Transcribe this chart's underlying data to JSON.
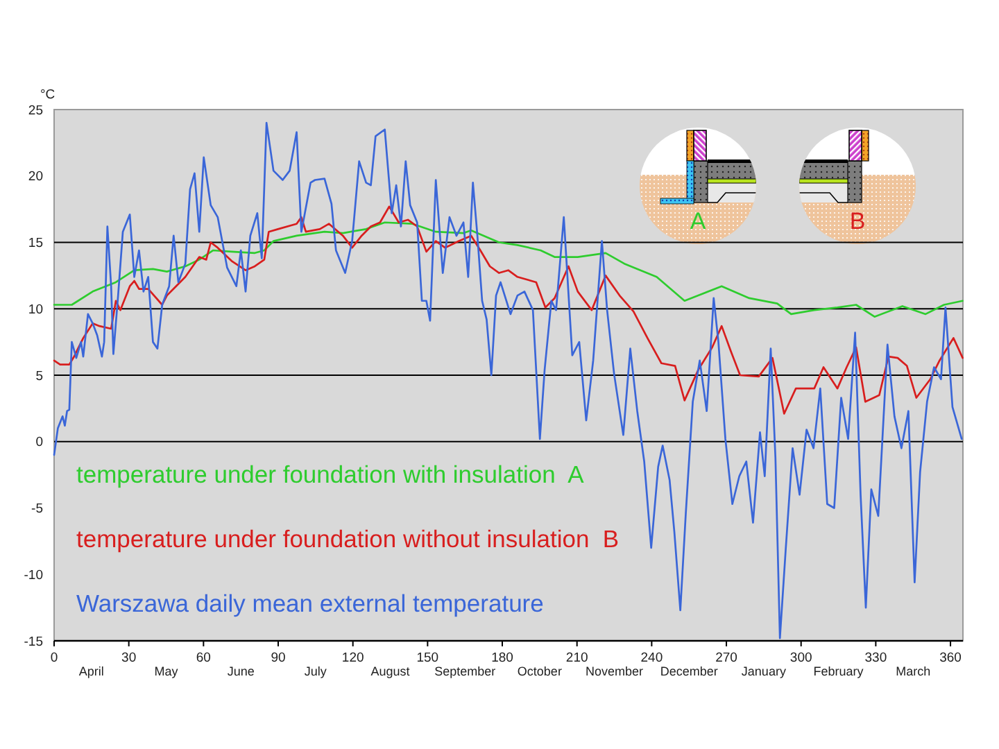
{
  "chart_data": {
    "type": "line",
    "ylabel": "°C",
    "xlim": [
      0,
      365
    ],
    "xticks": [
      0,
      30,
      60,
      90,
      120,
      150,
      180,
      210,
      240,
      270,
      300,
      330,
      360
    ],
    "ylim": [
      -15,
      25
    ],
    "yticks": [
      -15,
      -10,
      -5,
      0,
      5,
      10,
      15,
      20,
      25
    ],
    "legend": "bottom left",
    "ref_lines": [
      {
        "axis": "y",
        "value": 0,
        "color": "#000000"
      },
      {
        "axis": "y",
        "value": 5,
        "color": "#000000"
      },
      {
        "axis": "y",
        "value": 10,
        "color": "#000000"
      },
      {
        "axis": "y",
        "value": 15,
        "color": "#000000"
      }
    ],
    "annotations": [
      "A",
      "B",
      "April",
      "May",
      "June",
      "July",
      "August",
      "September",
      "October",
      "November",
      "December",
      "January",
      "February",
      "March"
    ],
    "series": [
      {
        "name": "temperature under foundation with insulation  A",
        "color": "#2ecc2e",
        "x": [
          0,
          7.1,
          15.5,
          24.8,
          32.2,
          39.7,
          45.3,
          52.7,
          58.3,
          63.9,
          71.3,
          80.6,
          84.4,
          88.1,
          97.4,
          108.6,
          116,
          125.3,
          132.8,
          143.9,
          153.3,
          164.4,
          167.5,
          178.7,
          186.1,
          195.4,
          201,
          204.7,
          210.3,
          221.5,
          229,
          242,
          253.2,
          258.7,
          268.1,
          279.2,
          290.4,
          296,
          305.3,
          314.6,
          322.1,
          329.5,
          340.7,
          350,
          357.4,
          364.9
        ],
        "values": [
          10.3,
          10.3,
          11.3,
          12.0,
          12.9,
          13.0,
          12.8,
          13.2,
          13.7,
          14.4,
          14.3,
          14.2,
          14.4,
          15.1,
          15.5,
          15.8,
          15.7,
          16.0,
          16.5,
          16.4,
          15.8,
          15.7,
          15.9,
          15.0,
          14.8,
          14.4,
          13.9,
          13.9,
          13.9,
          14.2,
          13.4,
          12.4,
          10.6,
          11.0,
          11.7,
          10.8,
          10.4,
          9.6,
          9.9,
          10.1,
          10.3,
          9.4,
          10.2,
          9.6,
          10.3,
          10.6
        ]
      },
      {
        "name": "temperature under foundation without insulation  B",
        "color": "#d81e1e",
        "x": [
          0,
          2.4,
          6.1,
          8.0,
          11.7,
          15.5,
          18.2,
          22.9,
          24.8,
          26.6,
          30.4,
          32.2,
          34.1,
          37.8,
          43.4,
          45.3,
          52.7,
          58.3,
          61.1,
          62.9,
          65.7,
          71.3,
          76.9,
          80.6,
          84.4,
          86.2,
          89.9,
          97.4,
          99.3,
          101.1,
          106.7,
          110.4,
          116.0,
          119.7,
          123.5,
          127.2,
          130.9,
          134.6,
          138.4,
          142.1,
          145.8,
          149.5,
          153.3,
          157.0,
          162.6,
          167.5,
          171.2,
          175.0,
          178.7,
          182.4,
          186.1,
          193.6,
          197.3,
          201.0,
          206.6,
          210.3,
          215.9,
          221.5,
          227.1,
          232.7,
          238.3,
          243.9,
          249.4,
          253.2,
          258.7,
          264.3,
          268.1,
          271.8,
          275.5,
          283.0,
          288.5,
          293.2,
          297.9,
          305.3,
          309.0,
          314.6,
          318.3,
          322.1,
          325.8,
          331.4,
          335.1,
          338.8,
          342.5,
          346.3,
          351.9,
          355.6,
          361.2,
          364.9
        ],
        "values": [
          6.1,
          5.8,
          5.8,
          6.4,
          7.8,
          8.9,
          8.7,
          8.5,
          10.6,
          9.9,
          11.7,
          12.1,
          11.5,
          11.5,
          10.3,
          11.0,
          12.4,
          13.9,
          13.7,
          15.0,
          14.6,
          13.6,
          12.9,
          13.2,
          13.7,
          15.8,
          16.0,
          16.4,
          16.9,
          15.8,
          16.0,
          16.4,
          15.5,
          14.6,
          15.5,
          16.2,
          16.5,
          17.7,
          16.5,
          16.7,
          16.2,
          14.3,
          15.1,
          14.6,
          15.1,
          15.5,
          14.4,
          13.2,
          12.7,
          12.9,
          12.4,
          12.0,
          10.1,
          10.8,
          13.2,
          11.3,
          9.9,
          12.5,
          11.0,
          9.8,
          7.8,
          5.9,
          5.7,
          3.1,
          5.4,
          7.1,
          8.7,
          6.8,
          5.0,
          4.9,
          6.3,
          2.1,
          4.0,
          4.0,
          5.6,
          4.0,
          5.6,
          7.1,
          3.0,
          3.5,
          6.4,
          6.3,
          5.7,
          3.3,
          4.7,
          6.1,
          7.8,
          6.3
        ]
      },
      {
        "name": "Warszawa daily mean external temperature",
        "color": "#3a66d8",
        "x": [
          0,
          1.5,
          3.4,
          4.3,
          5.2,
          6.1,
          7.1,
          8.9,
          10.8,
          11.7,
          13.6,
          15.5,
          17.3,
          19.2,
          20.1,
          21.4,
          22.9,
          23.8,
          25.7,
          27.6,
          30.4,
          32.2,
          34.1,
          35.9,
          37.8,
          39.7,
          41.5,
          43.4,
          46.2,
          48.0,
          49.9,
          52.7,
          54.6,
          56.4,
          58.3,
          60.1,
          62.9,
          65.7,
          69.5,
          73.2,
          75.0,
          76.9,
          78.8,
          81.6,
          83.4,
          85.3,
          88.1,
          91.8,
          94.6,
          97.4,
          99.3,
          103.0,
          104.8,
          108.6,
          111.4,
          113.2,
          116.9,
          119.7,
          122.5,
          125.3,
          127.2,
          129.1,
          132.8,
          135.6,
          137.4,
          139.3,
          141.2,
          143.0,
          145.8,
          147.7,
          149.5,
          151.0,
          153.3,
          156.1,
          158.8,
          161.6,
          164.4,
          166.3,
          168.2,
          170.0,
          171.9,
          173.7,
          175.6,
          177.5,
          179.3,
          183.3,
          186.1,
          188.9,
          192.3,
          195.1,
          197.0,
          199.7,
          201.6,
          204.7,
          208.1,
          210.9,
          213.7,
          216.5,
          220.0,
          222.1,
          224.9,
          228.6,
          231.4,
          234.2,
          237.0,
          239.8,
          242.6,
          244.4,
          247.2,
          249.1,
          251.5,
          253.7,
          256.5,
          259.3,
          262.1,
          264.9,
          266.8,
          269.6,
          272.4,
          275.2,
          278.0,
          280.7,
          283.5,
          285.4,
          287.8,
          289.7,
          291.5,
          293.8,
          296.6,
          299.4,
          302.2,
          305.0,
          307.7,
          310.5,
          313.3,
          316.1,
          318.9,
          321.7,
          323.9,
          326.0,
          328.2,
          331.0,
          334.7,
          337.5,
          340.3,
          343.1,
          345.6,
          347.8,
          350.6,
          353.4,
          356.2,
          358.0,
          360.8,
          364.5
        ],
        "values": [
          -1.0,
          1.0,
          1.9,
          1.2,
          2.3,
          2.4,
          7.5,
          6.3,
          7.5,
          6.4,
          9.6,
          8.9,
          8.0,
          6.4,
          7.5,
          16.2,
          11.7,
          6.6,
          11.0,
          15.8,
          17.1,
          12.4,
          14.4,
          11.3,
          12.4,
          7.5,
          7.0,
          10.3,
          11.7,
          15.5,
          12.0,
          13.4,
          19.0,
          20.2,
          15.8,
          21.4,
          17.8,
          16.9,
          13.1,
          11.7,
          14.4,
          11.3,
          15.5,
          17.2,
          13.8,
          24.0,
          20.4,
          19.7,
          20.4,
          23.3,
          15.8,
          19.5,
          19.7,
          19.8,
          17.9,
          14.4,
          12.7,
          15.1,
          21.1,
          19.5,
          19.3,
          23.0,
          23.5,
          17.2,
          19.3,
          16.2,
          21.1,
          17.8,
          16.5,
          10.6,
          10.6,
          9.1,
          19.7,
          12.7,
          16.9,
          15.5,
          16.5,
          12.4,
          19.5,
          15.5,
          10.6,
          9.2,
          5.0,
          11.0,
          12.0,
          9.6,
          11.0,
          11.3,
          9.9,
          0.2,
          5.4,
          10.6,
          9.9,
          16.9,
          6.5,
          7.5,
          1.6,
          6.1,
          15.1,
          9.9,
          5.1,
          0.5,
          7.0,
          2.3,
          -1.5,
          -8.0,
          -1.9,
          -0.3,
          -2.9,
          -6.8,
          -12.7,
          -5.4,
          3.0,
          6.1,
          2.3,
          10.8,
          7.5,
          0.2,
          -4.7,
          -2.6,
          -1.5,
          -6.1,
          0.7,
          -2.6,
          7.0,
          -1.2,
          -14.8,
          -8.2,
          -0.5,
          -4.0,
          0.9,
          -0.5,
          4.0,
          -4.7,
          -5.0,
          3.3,
          0.2,
          8.2,
          -4.0,
          -12.5,
          -3.6,
          -5.6,
          7.3,
          1.9,
          -0.5,
          2.3,
          -10.6,
          -2.3,
          3.0,
          5.6,
          4.7,
          10.1,
          2.6,
          0.2
        ]
      }
    ]
  }
}
